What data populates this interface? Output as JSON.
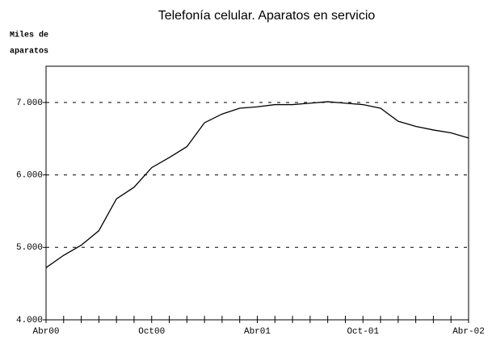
{
  "chart_data": {
    "type": "line",
    "title": "Telefonía celular. Aparatos en servicio",
    "y_label_lines": [
      "Miles de",
      "aparatos"
    ],
    "categories": [
      "Abr00",
      null,
      null,
      null,
      null,
      null,
      "Oct00",
      null,
      null,
      null,
      null,
      null,
      "Abr01",
      null,
      null,
      null,
      null,
      null,
      "Oct-01",
      null,
      null,
      null,
      null,
      null,
      "Abr-02"
    ],
    "series": [
      {
        "name": "Aparatos en servicio",
        "color": "#000000",
        "values": [
          4720,
          4890,
          5030,
          5230,
          5670,
          5830,
          6100,
          6240,
          6390,
          6720,
          6840,
          6920,
          6940,
          6970,
          6970,
          6990,
          7010,
          6990,
          6970,
          6920,
          6740,
          6670,
          6620,
          6580,
          6510
        ]
      }
    ],
    "ylim": [
      4000,
      7500
    ],
    "yticks": [
      {
        "value": 4000,
        "label": "4.000"
      },
      {
        "value": 5000,
        "label": "5.000"
      },
      {
        "value": 6000,
        "label": "6.000"
      },
      {
        "value": 7000,
        "label": "7.000"
      }
    ],
    "grid": true
  }
}
